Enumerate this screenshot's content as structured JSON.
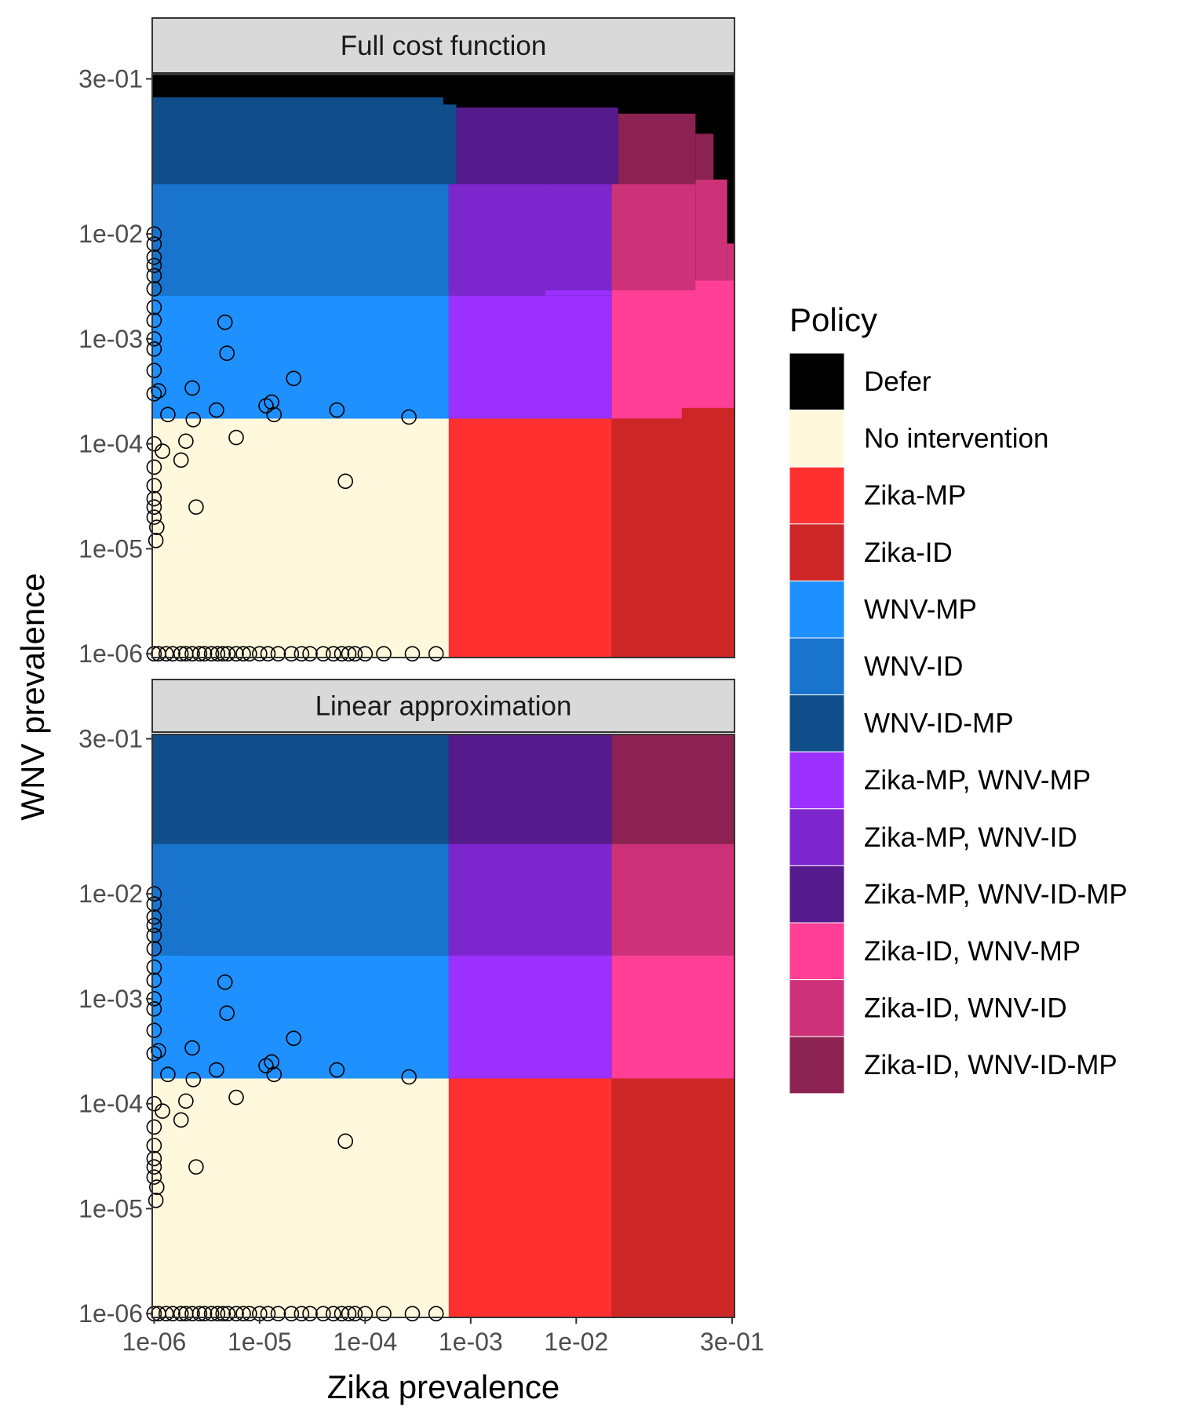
{
  "chart_data": {
    "type": "heatmap",
    "xlabel": "Zika prevalence",
    "ylabel": "WNV prevalence",
    "x_scale": "log10",
    "y_scale": "log10",
    "xlim": [
      9.6e-07,
      0.316
    ],
    "ylim": [
      9.2e-07,
      0.33
    ],
    "x_ticks": [
      {
        "v": 1e-06,
        "label": "1e-06"
      },
      {
        "v": 1e-05,
        "label": "1e-05"
      },
      {
        "v": 0.0001,
        "label": "1e-04"
      },
      {
        "v": 0.001,
        "label": "1e-03"
      },
      {
        "v": 0.01,
        "label": "1e-02"
      },
      {
        "v": 0.3,
        "label": "3e-01"
      }
    ],
    "y_ticks": [
      {
        "v": 1e-06,
        "label": "1e-06"
      },
      {
        "v": 1e-05,
        "label": "1e-05"
      },
      {
        "v": 0.0001,
        "label": "1e-04"
      },
      {
        "v": 0.001,
        "label": "1e-03"
      },
      {
        "v": 0.01,
        "label": "1e-02"
      },
      {
        "v": 0.3,
        "label": "3e-01"
      }
    ],
    "grid": false,
    "legend": {
      "title": "Policy",
      "placement": "right",
      "entries": [
        {
          "label": "Defer",
          "color": "#000000"
        },
        {
          "label": "No intervention",
          "color": "#FFF8DC"
        },
        {
          "label": "Zika-MP",
          "color": "#FF3030"
        },
        {
          "label": "Zika-ID",
          "color": "#CD2626"
        },
        {
          "label": "WNV-MP",
          "color": "#1E90FF"
        },
        {
          "label": "WNV-ID",
          "color": "#1874CD"
        },
        {
          "label": "WNV-ID-MP",
          "color": "#104E8B"
        },
        {
          "label": "Zika-MP, WNV-MP",
          "color": "#9B30FF"
        },
        {
          "label": "Zika-MP, WNV-ID",
          "color": "#7D26CD"
        },
        {
          "label": "Zika-MP, WNV-ID-MP",
          "color": "#551A8B"
        },
        {
          "label": "Zika-ID, WNV-MP",
          "color": "#FF3E96"
        },
        {
          "label": "Zika-ID, WNV-ID",
          "color": "#CD3278"
        },
        {
          "label": "Zika-ID, WNV-ID-MP",
          "color": "#8B2252"
        }
      ]
    },
    "panels": [
      {
        "title": "Full cost function",
        "background_policy": "Defer",
        "regions": [
          {
            "policy": "No intervention",
            "x": [
              9.6e-07,
              0.00062
            ],
            "y": [
              9.2e-07,
              0.000174
            ]
          },
          {
            "policy": "Zika-MP",
            "x": [
              0.00062,
              0.0217
            ],
            "y": [
              9.2e-07,
              0.000174
            ]
          },
          {
            "policy": "Zika-ID, WNV-MP",
            "x": [
              0.0217,
              0.316
            ],
            "y": [
              0.000174,
              0.0036
            ]
          },
          {
            "policy": "Zika-ID",
            "x": [
              0.0217,
              0.316
            ],
            "y": [
              9.2e-07,
              0.000174
            ]
          },
          {
            "policy": "Zika-ID",
            "x": [
              0.1,
              0.316
            ],
            "y": [
              0.000174,
              0.00022
            ]
          },
          {
            "policy": "WNV-MP",
            "x": [
              9.6e-07,
              0.00062
            ],
            "y": [
              0.000174,
              0.0026
            ]
          },
          {
            "policy": "Zika-MP, WNV-MP",
            "x": [
              0.00062,
              0.0217
            ],
            "y": [
              0.000174,
              0.0026
            ]
          },
          {
            "policy": "Zika-MP, WNV-MP",
            "x": [
              0.0051,
              0.0217
            ],
            "y": [
              0.0026,
              0.0029
            ]
          },
          {
            "policy": "Zika-ID, WNV-ID",
            "x": [
              0.0217,
              0.135
            ],
            "y": [
              0.0029,
              0.03
            ]
          },
          {
            "policy": "Zika-ID, WNV-ID",
            "x": [
              0.135,
              0.27
            ],
            "y": [
              0.0036,
              0.033
            ]
          },
          {
            "policy": "Zika-ID, WNV-ID",
            "x": [
              0.27,
              0.316
            ],
            "y": [
              0.0036,
              0.0081
            ]
          },
          {
            "policy": "WNV-ID",
            "x": [
              9.6e-07,
              0.00062
            ],
            "y": [
              0.0026,
              0.03
            ]
          },
          {
            "policy": "Zika-MP, WNV-ID",
            "x": [
              0.00062,
              0.0051
            ],
            "y": [
              0.0026,
              0.03
            ]
          },
          {
            "policy": "Zika-MP, WNV-ID",
            "x": [
              0.0051,
              0.0217
            ],
            "y": [
              0.0029,
              0.03
            ]
          },
          {
            "policy": "WNV-ID-MP",
            "x": [
              9.6e-07,
              0.00055
            ],
            "y": [
              0.03,
              0.2
            ]
          },
          {
            "policy": "WNV-ID-MP",
            "x": [
              0.00055,
              0.00073
            ],
            "y": [
              0.03,
              0.171
            ]
          },
          {
            "policy": "Zika-MP, WNV-ID-MP",
            "x": [
              0.00073,
              0.025
            ],
            "y": [
              0.03,
              0.16
            ]
          },
          {
            "policy": "Zika-ID, WNV-ID-MP",
            "x": [
              0.025,
              0.135
            ],
            "y": [
              0.03,
              0.14
            ]
          },
          {
            "policy": "Zika-ID, WNV-ID-MP",
            "x": [
              0.135,
              0.2
            ],
            "y": [
              0.033,
              0.09
            ]
          }
        ]
      },
      {
        "title": "Linear approximation",
        "background_policy": "Defer",
        "regions": [
          {
            "policy": "No intervention",
            "x": [
              9.6e-07,
              0.00062
            ],
            "y": [
              9.2e-07,
              0.000174
            ]
          },
          {
            "policy": "Zika-MP",
            "x": [
              0.00062,
              0.0217
            ],
            "y": [
              9.2e-07,
              0.000174
            ]
          },
          {
            "policy": "Zika-ID",
            "x": [
              0.0217,
              0.316
            ],
            "y": [
              9.2e-07,
              0.000174
            ]
          },
          {
            "policy": "WNV-MP",
            "x": [
              9.6e-07,
              0.00062
            ],
            "y": [
              0.000174,
              0.0026
            ]
          },
          {
            "policy": "Zika-MP, WNV-MP",
            "x": [
              0.00062,
              0.0217
            ],
            "y": [
              0.000174,
              0.0026
            ]
          },
          {
            "policy": "Zika-ID, WNV-MP",
            "x": [
              0.0217,
              0.316
            ],
            "y": [
              0.000174,
              0.0026
            ]
          },
          {
            "policy": "WNV-ID",
            "x": [
              9.6e-07,
              0.00062
            ],
            "y": [
              0.0026,
              0.03
            ]
          },
          {
            "policy": "Zika-MP, WNV-ID",
            "x": [
              0.00062,
              0.0217
            ],
            "y": [
              0.0026,
              0.03
            ]
          },
          {
            "policy": "Zika-ID, WNV-ID",
            "x": [
              0.0217,
              0.316
            ],
            "y": [
              0.0026,
              0.03
            ]
          },
          {
            "policy": "WNV-ID-MP",
            "x": [
              9.6e-07,
              0.00062
            ],
            "y": [
              0.03,
              0.33
            ]
          },
          {
            "policy": "Zika-MP, WNV-ID-MP",
            "x": [
              0.00062,
              0.0217
            ],
            "y": [
              0.03,
              0.33
            ]
          },
          {
            "policy": "Zika-ID, WNV-ID-MP",
            "x": [
              0.0217,
              0.316
            ],
            "y": [
              0.03,
              0.33
            ]
          }
        ]
      }
    ],
    "points": [
      [
        4.7e-06,
        0.00144
      ],
      [
        4.9e-06,
        0.00073
      ],
      [
        2.3e-06,
        0.00034
      ],
      [
        2.1e-05,
        0.00042
      ],
      [
        1.35e-06,
        0.00019
      ],
      [
        2.35e-06,
        0.00017
      ],
      [
        3.9e-06,
        0.00021
      ],
      [
        1.15e-05,
        0.00023
      ],
      [
        1.3e-05,
        0.00025
      ],
      [
        1.37e-05,
        0.00019
      ],
      [
        5.4e-05,
        0.00021
      ],
      [
        0.00026,
        0.00018
      ],
      [
        6e-06,
        0.000115
      ],
      [
        2e-06,
        0.000106
      ],
      [
        1.2e-06,
        8.5e-05
      ],
      [
        1.8e-06,
        7e-05
      ],
      [
        6.5e-05,
        4.4e-05
      ],
      [
        2.5e-06,
        2.5e-05
      ],
      [
        1.06e-06,
        1.6e-05
      ],
      [
        1.04e-06,
        1.2e-05
      ],
      [
        1.1e-06,
        0.00032
      ],
      [
        1e-06,
        0.01
      ],
      [
        1e-06,
        0.008
      ],
      [
        1e-06,
        0.006
      ],
      [
        1e-06,
        0.005
      ],
      [
        1e-06,
        0.004
      ],
      [
        1e-06,
        0.003
      ],
      [
        1e-06,
        0.002
      ],
      [
        1e-06,
        0.0015
      ],
      [
        1e-06,
        0.001
      ],
      [
        1e-06,
        0.0008
      ],
      [
        1e-06,
        0.0005
      ],
      [
        1e-06,
        0.0003
      ],
      [
        1e-06,
        0.0001
      ],
      [
        1e-06,
        6e-05
      ],
      [
        1e-06,
        4e-05
      ],
      [
        1e-06,
        3e-05
      ],
      [
        1e-06,
        2.5e-05
      ],
      [
        1e-06,
        2e-05
      ],
      [
        1e-06,
        1e-06
      ],
      [
        1.1e-06,
        1e-06
      ],
      [
        1.3e-06,
        1e-06
      ],
      [
        1.5e-06,
        1e-06
      ],
      [
        1.8e-06,
        1e-06
      ],
      [
        2e-06,
        1e-06
      ],
      [
        2.3e-06,
        1e-06
      ],
      [
        2.7e-06,
        1e-06
      ],
      [
        3e-06,
        1e-06
      ],
      [
        3.5e-06,
        1e-06
      ],
      [
        4e-06,
        1e-06
      ],
      [
        4.5e-06,
        1e-06
      ],
      [
        5e-06,
        1e-06
      ],
      [
        6e-06,
        1e-06
      ],
      [
        7e-06,
        1e-06
      ],
      [
        8e-06,
        1e-06
      ],
      [
        1e-05,
        1e-06
      ],
      [
        1.2e-05,
        1e-06
      ],
      [
        1.5e-05,
        1e-06
      ],
      [
        2e-05,
        1e-06
      ],
      [
        2.5e-05,
        1e-06
      ],
      [
        3e-05,
        1e-06
      ],
      [
        4e-05,
        1e-06
      ],
      [
        5e-05,
        1e-06
      ],
      [
        6e-05,
        1e-06
      ],
      [
        7e-05,
        1e-06
      ],
      [
        8e-05,
        1e-06
      ],
      [
        0.0001,
        1e-06
      ],
      [
        0.00015,
        1e-06
      ],
      [
        0.00028,
        1e-06
      ],
      [
        0.00047,
        1e-06
      ]
    ]
  }
}
